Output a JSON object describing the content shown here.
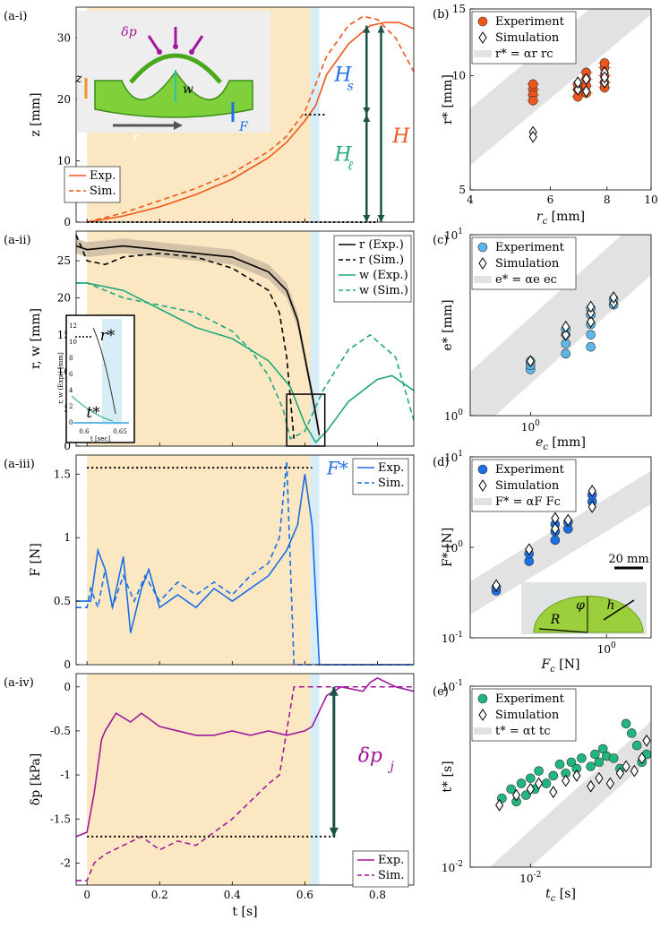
{
  "colors": {
    "orange": "#f0561a",
    "black": "#000000",
    "green": "#1fa87a",
    "blue": "#1a6ee6",
    "purple": "#a0199b",
    "tan": "#fbe8c3",
    "lightblue": "#d6ecf7",
    "band": "#e2e2e2",
    "teal": "#1b5446",
    "simgreen": "#7fd03a"
  },
  "inset_diagram": {
    "dp": "δp",
    "z": "z",
    "w": "w",
    "r": "r",
    "F": "F"
  },
  "chart_data": [
    {
      "id": "a-i",
      "label": "(a-i)",
      "type": "line",
      "xlim": [
        -0.03,
        0.9
      ],
      "ylim": [
        0,
        35
      ],
      "ylabel": "z [mm]",
      "yticks": [
        0,
        10,
        20,
        30
      ],
      "annotations": {
        "Hs": "H",
        "Hs_sub": "s",
        "Hl": "H",
        "Hl_sub": "ℓ",
        "H": "H"
      },
      "series": [
        {
          "name": "Exp.",
          "dash": false,
          "x": [
            0,
            0.1,
            0.2,
            0.3,
            0.4,
            0.5,
            0.55,
            0.6,
            0.63,
            0.66,
            0.72,
            0.78,
            0.82,
            0.86,
            0.9
          ],
          "y": [
            0,
            1,
            2.5,
            4.5,
            7,
            10.5,
            13,
            16.5,
            19,
            24,
            29,
            32,
            32.5,
            32.5,
            31.5
          ]
        },
        {
          "name": "Sim.",
          "dash": true,
          "x": [
            0,
            0.1,
            0.2,
            0.3,
            0.4,
            0.5,
            0.55,
            0.6,
            0.62,
            0.66,
            0.72,
            0.76,
            0.8,
            0.85,
            0.9
          ],
          "y": [
            0,
            1.5,
            3.5,
            5.5,
            8,
            11.5,
            14,
            18,
            21,
            27,
            32,
            33.5,
            33,
            30,
            24.5
          ]
        }
      ]
    },
    {
      "id": "a-ii",
      "label": "(a-ii)",
      "type": "line",
      "xlim": [
        -0.03,
        0.9
      ],
      "ylim": [
        0,
        29
      ],
      "ylabel": "r, w [mm]",
      "yticks": [
        0,
        5,
        10,
        15,
        20,
        25
      ],
      "annotations": {
        "rstar": "r*",
        "tstar": "t*",
        "inset_t": "t [sec]",
        "inset_y": "r, w (Exp.) [mm]",
        "inset_xt": [
          "0.6",
          "0.65"
        ],
        "inset_yt": [
          "0",
          "2",
          "4",
          "6",
          "8",
          "10",
          "12"
        ]
      },
      "series": [
        {
          "name": "r (Exp.)",
          "dash": false,
          "x": [
            -0.03,
            0,
            0.1,
            0.2,
            0.3,
            0.4,
            0.5,
            0.55,
            0.58,
            0.6,
            0.62,
            0.64
          ],
          "y": [
            27,
            26.5,
            27,
            26.5,
            26,
            25.5,
            23.5,
            21,
            17,
            12,
            7,
            1.5
          ]
        },
        {
          "name": "r (Sim.)",
          "dash": true,
          "x": [
            -0.03,
            0,
            0.05,
            0.1,
            0.2,
            0.3,
            0.4,
            0.5,
            0.53,
            0.55,
            0.57
          ],
          "y": [
            28.5,
            25,
            24.5,
            25.5,
            26,
            25.5,
            24,
            21,
            18,
            12,
            1
          ]
        },
        {
          "name": "w (Exp.)",
          "dash": false,
          "x": [
            -0.03,
            0,
            0.1,
            0.2,
            0.3,
            0.4,
            0.5,
            0.56,
            0.6,
            0.63,
            0.66,
            0.72,
            0.8,
            0.84,
            0.9
          ],
          "y": [
            22,
            22,
            21,
            18.5,
            16,
            14.5,
            11.5,
            8,
            3,
            0.5,
            2,
            6,
            9,
            9.5,
            7.5
          ]
        },
        {
          "name": "w (Sim.)",
          "dash": true,
          "x": [
            -0.03,
            0,
            0.1,
            0.2,
            0.3,
            0.4,
            0.45,
            0.5,
            0.54,
            0.56,
            0.6,
            0.65,
            0.72,
            0.78,
            0.85,
            0.9
          ],
          "y": [
            22,
            22,
            20,
            19,
            18,
            15.5,
            13,
            9.5,
            5,
            1,
            2,
            7.5,
            13,
            15,
            12,
            3.5
          ]
        }
      ]
    },
    {
      "id": "a-iii",
      "label": "(a-iii)",
      "type": "line",
      "xlim": [
        -0.03,
        0.9
      ],
      "ylim": [
        0,
        1.65
      ],
      "ylabel": "F [N]",
      "yticks": [
        0,
        0.5,
        1,
        1.5
      ],
      "yticklabels": [
        "0",
        "0.5",
        "1",
        "1.5"
      ],
      "annotations": {
        "Fstar": "F*"
      },
      "series": [
        {
          "name": "Exp.",
          "dash": false,
          "x": [
            -0.03,
            0,
            0.01,
            0.03,
            0.05,
            0.07,
            0.1,
            0.12,
            0.15,
            0.17,
            0.2,
            0.25,
            0.3,
            0.35,
            0.4,
            0.45,
            0.5,
            0.55,
            0.58,
            0.6,
            0.62,
            0.64,
            0.9
          ],
          "y": [
            0.5,
            0.5,
            0.5,
            0.9,
            0.75,
            0.45,
            0.85,
            0.25,
            0.6,
            0.75,
            0.45,
            0.55,
            0.45,
            0.6,
            0.5,
            0.6,
            0.7,
            0.9,
            1.1,
            1.5,
            1.1,
            0,
            0
          ]
        },
        {
          "name": "Sim.",
          "dash": true,
          "x": [
            -0.03,
            0,
            0.01,
            0.03,
            0.05,
            0.07,
            0.1,
            0.13,
            0.16,
            0.2,
            0.25,
            0.3,
            0.35,
            0.4,
            0.45,
            0.5,
            0.53,
            0.55,
            0.56,
            0.57,
            0.9
          ],
          "y": [
            0.45,
            0.45,
            0.6,
            0.45,
            0.75,
            0.45,
            0.7,
            0.5,
            0.7,
            0.5,
            0.65,
            0.55,
            0.65,
            0.55,
            0.7,
            0.8,
            1.0,
            1.6,
            0.8,
            0,
            0
          ]
        }
      ]
    },
    {
      "id": "a-iv",
      "label": "(a-iv)",
      "type": "line",
      "xlim": [
        -0.03,
        0.9
      ],
      "ylim": [
        -2.25,
        0.15
      ],
      "ylabel": "δp [kPa]",
      "yticks": [
        -2,
        -1.5,
        -1,
        -0.5,
        0
      ],
      "yticklabels": [
        "-2",
        "-1.5",
        "-1",
        "-0.5",
        "0"
      ],
      "xlabel": "t [s]",
      "xticks": [
        0,
        0.2,
        0.4,
        0.6,
        0.8
      ],
      "xticklabels": [
        "0",
        "0.2",
        "0.4",
        "0.6",
        "0.8"
      ],
      "annotations": {
        "dpj": "δp",
        "dpj_sub": "j"
      },
      "series": [
        {
          "name": "Exp.",
          "dash": false,
          "x": [
            -0.03,
            0,
            0.02,
            0.04,
            0.05,
            0.08,
            0.12,
            0.15,
            0.2,
            0.25,
            0.3,
            0.35,
            0.4,
            0.45,
            0.5,
            0.55,
            0.6,
            0.62,
            0.66,
            0.7,
            0.76,
            0.78,
            0.8,
            0.85,
            0.9
          ],
          "y": [
            -1.7,
            -1.65,
            -1.2,
            -0.6,
            -0.5,
            -0.3,
            -0.4,
            -0.3,
            -0.45,
            -0.5,
            -0.55,
            -0.55,
            -0.5,
            -0.55,
            -0.5,
            -0.55,
            -0.5,
            -0.45,
            -0.1,
            0,
            -0.05,
            0.05,
            0.1,
            0,
            -0.05
          ]
        },
        {
          "name": "Sim.",
          "dash": true,
          "x": [
            -0.03,
            0,
            0.02,
            0.05,
            0.1,
            0.15,
            0.2,
            0.25,
            0.3,
            0.35,
            0.4,
            0.45,
            0.5,
            0.53,
            0.55,
            0.57,
            0.6,
            0.7,
            0.8,
            0.9
          ],
          "y": [
            -2.2,
            -2.2,
            -2.0,
            -1.9,
            -1.8,
            -1.7,
            -1.85,
            -1.75,
            -1.8,
            -1.65,
            -1.5,
            -1.3,
            -1.1,
            -1.0,
            -0.5,
            0,
            0,
            0,
            0,
            0
          ]
        }
      ]
    },
    {
      "id": "b",
      "label": "(b)",
      "type": "scatter",
      "scale": "log",
      "xlim": [
        4,
        10
      ],
      "ylim": [
        5,
        15
      ],
      "xlabel": "r",
      "xlabel_sub": "c",
      "xlabel_unit": " [mm]",
      "ylabel": "r* [mm]",
      "xticks": [
        4,
        6,
        8,
        10
      ],
      "yticks": [
        5,
        10,
        15
      ],
      "legend": [
        "Experiment",
        "Simulation",
        "r* = αr rc"
      ],
      "band_ratio": [
        1.45,
        2.05
      ],
      "series": [
        {
          "name": "Experiment",
          "marker": "circle",
          "x": [
            5.5,
            5.5,
            5.5,
            5.5,
            6.9,
            6.9,
            6.9,
            7.2,
            7.2,
            7.2,
            7.2,
            7.9,
            7.9,
            7.9,
            7.9,
            7.9
          ],
          "y": [
            9.2,
            8.9,
            8.6,
            9.5,
            9.5,
            9.2,
            8.8,
            10.2,
            9.8,
            9.4,
            9.0,
            10.5,
            10.0,
            9.6,
            9.3,
            10.8
          ]
        },
        {
          "name": "Simulation",
          "marker": "diamond",
          "x": [
            5.5,
            5.5,
            6.9,
            6.9,
            7.2,
            7.2,
            7.9,
            7.9,
            7.9
          ],
          "y": [
            7.1,
            6.9,
            9.2,
            9.6,
            9.1,
            9.8,
            9.6,
            10.2,
            9.9
          ]
        }
      ]
    },
    {
      "id": "c",
      "label": "(c)",
      "type": "scatter",
      "scale": "log",
      "xlim": [
        0.5,
        4
      ],
      "ylim": [
        1,
        10
      ],
      "xlabel": "e",
      "xlabel_sub": "c",
      "xlabel_unit": " [mm]",
      "ylabel": "e* [mm]",
      "xticks": [
        1
      ],
      "yticks": [
        1,
        10
      ],
      "legend": [
        "Experiment",
        "Simulation",
        "e* = αe ec"
      ],
      "band_ratio": [
        1.5,
        3.5
      ],
      "series": [
        {
          "name": "Experiment",
          "marker": "circle",
          "x": [
            1,
            1,
            1,
            1.5,
            1.5,
            1.5,
            1.5,
            2,
            2,
            2,
            2,
            2,
            2.6,
            2.6
          ],
          "y": [
            1.8,
            1.9,
            2.0,
            2.2,
            2.5,
            2.8,
            3.0,
            2.4,
            2.8,
            3.2,
            3.6,
            3.9,
            4.1,
            4.4
          ]
        },
        {
          "name": "Simulation",
          "marker": "diamond",
          "x": [
            1,
            1.5,
            1.5,
            2,
            2,
            2,
            2.6,
            2.6
          ],
          "y": [
            2.0,
            2.8,
            3.1,
            3.3,
            3.7,
            4.0,
            4.2,
            4.5
          ]
        }
      ]
    },
    {
      "id": "d",
      "label": "(d)",
      "type": "scatter",
      "scale": "log",
      "xlim": [
        0.12,
        2
      ],
      "ylim": [
        0.1,
        10
      ],
      "xlabel": "F",
      "xlabel_sub": "c",
      "xlabel_unit": " [N]",
      "ylabel": "F* [N]",
      "xticks": [
        1
      ],
      "yticks": [
        0.1,
        1,
        10
      ],
      "legend": [
        "Experiment",
        "Simulation",
        "F* = αF Fc"
      ],
      "inset": {
        "scale": "20 mm",
        "R": "R",
        "phi": "φ",
        "h": "h"
      },
      "band_ratio": [
        1.5,
        3.5
      ],
      "series": [
        {
          "name": "Experiment",
          "marker": "circle",
          "x": [
            0.18,
            0.18,
            0.3,
            0.3,
            0.45,
            0.45,
            0.45,
            0.55,
            0.55,
            0.8,
            0.8
          ],
          "y": [
            0.33,
            0.36,
            0.7,
            0.85,
            1.2,
            1.5,
            1.8,
            1.6,
            1.9,
            3.2,
            3.8
          ]
        },
        {
          "name": "Simulation",
          "marker": "diamond",
          "x": [
            0.18,
            0.3,
            0.45,
            0.45,
            0.55,
            0.8,
            0.8
          ],
          "y": [
            0.38,
            0.95,
            1.6,
            2.1,
            2.0,
            2.8,
            4.2
          ]
        }
      ]
    },
    {
      "id": "e",
      "label": "(e)",
      "type": "scatter",
      "scale": "log",
      "xlim": [
        0.005,
        0.04
      ],
      "ylim": [
        0.01,
        0.1
      ],
      "xlabel": "t",
      "xlabel_sub": "c",
      "xlabel_unit": " [s]",
      "ylabel": "t* [s]",
      "xticks": [
        0.01
      ],
      "yticks": [
        0.01,
        0.1
      ],
      "legend": [
        "Experiment",
        "Simulation",
        "t* = αt tc"
      ],
      "band_ratio": [
        1.0,
        1.6
      ],
      "series": [
        {
          "name": "Experiment",
          "marker": "circle",
          "x": [
            0.0072,
            0.008,
            0.0085,
            0.009,
            0.0095,
            0.01,
            0.0105,
            0.011,
            0.012,
            0.013,
            0.014,
            0.015,
            0.016,
            0.017,
            0.018,
            0.02,
            0.021,
            0.022,
            0.023,
            0.024,
            0.026,
            0.028,
            0.03,
            0.032,
            0.034,
            0.036,
            0.038
          ],
          "y": [
            0.024,
            0.027,
            0.023,
            0.029,
            0.025,
            0.031,
            0.027,
            0.034,
            0.029,
            0.032,
            0.037,
            0.033,
            0.038,
            0.035,
            0.04,
            0.036,
            0.042,
            0.038,
            0.045,
            0.041,
            0.04,
            0.035,
            0.062,
            0.055,
            0.047,
            0.038,
            0.042
          ]
        },
        {
          "name": "Simulation",
          "marker": "diamond",
          "x": [
            0.007,
            0.0085,
            0.01,
            0.011,
            0.013,
            0.015,
            0.017,
            0.02,
            0.022,
            0.025,
            0.028,
            0.03,
            0.033,
            0.036,
            0.038
          ],
          "y": [
            0.022,
            0.025,
            0.027,
            0.029,
            0.026,
            0.03,
            0.032,
            0.028,
            0.031,
            0.029,
            0.033,
            0.036,
            0.034,
            0.04,
            0.05
          ]
        }
      ]
    }
  ]
}
